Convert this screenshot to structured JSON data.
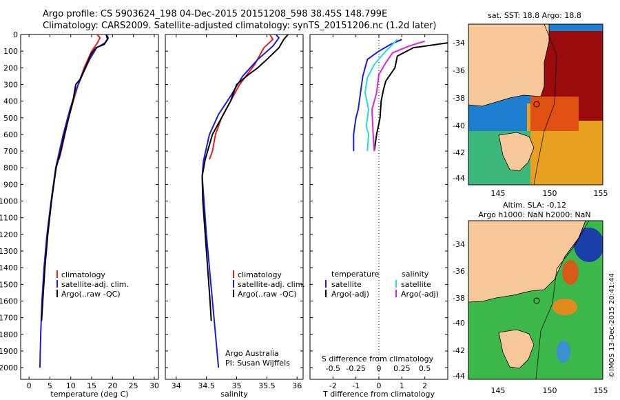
{
  "header": {
    "line1": "Argo profile: CS 5903624_198 04-Dec-2015 20151208_598 38.45S 148.799E",
    "line2": "Climatology: CARS2009. Satellite-adjusted climatology: synTS_20151206.nc (1.2d later)"
  },
  "colors": {
    "climatology": "#e02020",
    "satellite": "#1a1ae0",
    "argo": "#000000",
    "sal_sat": "#22dddd",
    "sal_argo": "#dd22dd",
    "land": "#f7c89a"
  },
  "chart_data": [
    {
      "id": "temp",
      "type": "line",
      "xlabel": "temperature (deg C)",
      "xticks": [
        "0",
        "5",
        "10",
        "15",
        "20",
        "25",
        "30"
      ],
      "xlim": [
        -2,
        31
      ],
      "yticks": [
        "0",
        "100",
        "200",
        "300",
        "400",
        "500",
        "600",
        "700",
        "800",
        "900",
        "1000",
        "1100",
        "1200",
        "1300",
        "1400",
        "1500",
        "1600",
        "1700",
        "1800",
        "1900",
        "2000"
      ],
      "ylim": [
        0,
        2070
      ],
      "legend": [
        "climatology",
        "satellite-adj. clim.",
        "Argo(..raw -QC)"
      ],
      "series": [
        {
          "name": "climatology",
          "color": "#e02020",
          "points": [
            [
              16.3,
              0
            ],
            [
              17,
              20
            ],
            [
              16.4,
              50
            ],
            [
              15,
              100
            ],
            [
              13.2,
              200
            ],
            [
              11.8,
              300
            ],
            [
              10.6,
              400
            ],
            [
              9.5,
              500
            ],
            [
              8.6,
              600
            ],
            [
              7.7,
              700
            ],
            [
              7.2,
              750
            ]
          ]
        },
        {
          "name": "satellite-adj. clim.",
          "color": "#1a1ae0",
          "points": [
            [
              18.5,
              0
            ],
            [
              19,
              20
            ],
            [
              18.2,
              50
            ],
            [
              16.2,
              80
            ],
            [
              14.5,
              150
            ],
            [
              13,
              230
            ],
            [
              11.3,
              330
            ],
            [
              9.8,
              450
            ],
            [
              8.2,
              600
            ],
            [
              6.4,
              800
            ],
            [
              5.3,
              1000
            ],
            [
              4.3,
              1200
            ],
            [
              3.6,
              1400
            ],
            [
              3.1,
              1600
            ],
            [
              2.8,
              1800
            ],
            [
              2.6,
              2000
            ]
          ]
        },
        {
          "name": "Argo(..raw -QC)",
          "color": "#000000",
          "points": [
            [
              18.5,
              0
            ],
            [
              18.8,
              30
            ],
            [
              18,
              60
            ],
            [
              16,
              80
            ],
            [
              14.8,
              120
            ],
            [
              13.5,
              200
            ],
            [
              12.2,
              270
            ],
            [
              11.2,
              300
            ],
            [
              10.5,
              400
            ],
            [
              9.5,
              500
            ],
            [
              8.5,
              600
            ],
            [
              7.6,
              700
            ],
            [
              6.5,
              800
            ],
            [
              5.4,
              1000
            ],
            [
              4.5,
              1200
            ],
            [
              3.8,
              1400
            ],
            [
              3.3,
              1600
            ],
            [
              3,
              1720
            ]
          ]
        }
      ]
    },
    {
      "id": "sal",
      "type": "line",
      "xlabel": "salinity",
      "xticks": [
        "34",
        "34.5",
        "35",
        "35.5",
        "36"
      ],
      "xlim": [
        33.82,
        36.1
      ],
      "ylim": [
        0,
        2070
      ],
      "legend": [
        "climatology",
        "satellite-adj. clim.",
        "Argo(..raw -QC)"
      ],
      "annotations": [
        "Argo Australia",
        "PI: Susan Wijffels"
      ],
      "series": [
        {
          "name": "climatology",
          "color": "#e02020",
          "points": [
            [
              35.55,
              0
            ],
            [
              35.6,
              30
            ],
            [
              35.45,
              80
            ],
            [
              35.3,
              180
            ],
            [
              35.05,
              300
            ],
            [
              34.9,
              400
            ],
            [
              34.75,
              500
            ],
            [
              34.65,
              600
            ],
            [
              34.6,
              700
            ],
            [
              34.55,
              750
            ]
          ]
        },
        {
          "name": "satellite-adj. clim.",
          "color": "#1a1ae0",
          "points": [
            [
              35.65,
              0
            ],
            [
              35.7,
              20
            ],
            [
              35.6,
              70
            ],
            [
              35.35,
              150
            ],
            [
              35.1,
              250
            ],
            [
              34.9,
              370
            ],
            [
              34.7,
              480
            ],
            [
              34.55,
              600
            ],
            [
              34.45,
              760
            ],
            [
              34.43,
              850
            ],
            [
              34.46,
              1000
            ],
            [
              34.5,
              1200
            ],
            [
              34.55,
              1400
            ],
            [
              34.6,
              1600
            ],
            [
              34.65,
              1800
            ],
            [
              34.7,
              2000
            ]
          ]
        },
        {
          "name": "Argo(..raw -QC)",
          "color": "#000000",
          "points": [
            [
              35.85,
              0
            ],
            [
              35.78,
              30
            ],
            [
              35.7,
              80
            ],
            [
              35.5,
              150
            ],
            [
              35.35,
              200
            ],
            [
              35.2,
              240
            ],
            [
              35.0,
              300
            ],
            [
              34.9,
              400
            ],
            [
              34.75,
              500
            ],
            [
              34.6,
              600
            ],
            [
              34.48,
              750
            ],
            [
              34.43,
              850
            ],
            [
              34.44,
              1000
            ],
            [
              34.48,
              1200
            ],
            [
              34.52,
              1400
            ],
            [
              34.56,
              1600
            ],
            [
              34.58,
              1720
            ]
          ]
        }
      ]
    },
    {
      "id": "diff",
      "type": "line",
      "xlabel": "T difference from climatology",
      "xlabel2": "S difference from climatology",
      "xticks": [
        "-2",
        "-1",
        "0",
        "1",
        "2"
      ],
      "xticks_top": [
        "-0.5",
        "-0.25",
        "0",
        "0.25",
        "0.5"
      ],
      "xlim": [
        -3,
        3
      ],
      "ylim": [
        0,
        2070
      ],
      "legend_titles": [
        "temperature",
        "salinity"
      ],
      "legend": [
        "satellite",
        "Argo(-adj)",
        "satellite",
        "Argo(-adj)"
      ],
      "series": [
        {
          "name": "satellite",
          "color": "#1a1ae0",
          "points": [
            [
              1,
              30
            ],
            [
              0.5,
              60
            ],
            [
              0,
              100
            ],
            [
              -0.5,
              150
            ],
            [
              -0.7,
              250
            ],
            [
              -0.8,
              350
            ],
            [
              -0.9,
              450
            ],
            [
              -1.0,
              500
            ],
            [
              -1.1,
              600
            ],
            [
              -1.1,
              700
            ]
          ]
        },
        {
          "name": "Argo(-adj)",
          "color": "#000000",
          "points": [
            [
              3,
              50
            ],
            [
              1.5,
              80
            ],
            [
              0.8,
              130
            ],
            [
              0.7,
              200
            ],
            [
              0.3,
              280
            ],
            [
              0.2,
              330
            ],
            [
              0.1,
              400
            ],
            [
              0.05,
              500
            ],
            [
              -0.1,
              600
            ],
            [
              -0.2,
              700
            ]
          ]
        },
        {
          "name": "satellite",
          "color": "#22dddd",
          "points": [
            [
              0.8,
              30
            ],
            [
              0.6,
              60
            ],
            [
              0.3,
              100
            ],
            [
              -0.2,
              180
            ],
            [
              -0.5,
              260
            ],
            [
              -0.6,
              350
            ],
            [
              -0.45,
              450
            ],
            [
              -0.55,
              550
            ],
            [
              -0.45,
              600
            ],
            [
              -0.5,
              700
            ]
          ]
        },
        {
          "name": "Argo(-adj)",
          "color": "#dd22dd",
          "points": [
            [
              2,
              40
            ],
            [
              1.3,
              70
            ],
            [
              0.6,
              110
            ],
            [
              0.3,
              170
            ],
            [
              0,
              240
            ],
            [
              -0.1,
              350
            ],
            [
              -0.3,
              450
            ],
            [
              -0.25,
              600
            ],
            [
              -0.2,
              700
            ]
          ]
        }
      ]
    }
  ],
  "maps": [
    {
      "id": "sst",
      "title": "sat. SST: 18.8 Argo: 18.8",
      "xticks": [
        "145",
        "150",
        "155"
      ],
      "yticks": [
        "-34",
        "-36",
        "-38",
        "-40",
        "-42",
        "-44"
      ]
    },
    {
      "id": "sla",
      "title": "Altim. SLA: -0.12",
      "subtitle": "Argo h1000: NaN h2000: NaN",
      "xticks": [
        "145",
        "150",
        "155"
      ],
      "yticks": [
        "-34",
        "-36",
        "-38",
        "-40",
        "-42",
        "-44"
      ]
    }
  ],
  "footer": {
    "credit": "©IMOS 13-Dec-2015 20:41:44"
  }
}
